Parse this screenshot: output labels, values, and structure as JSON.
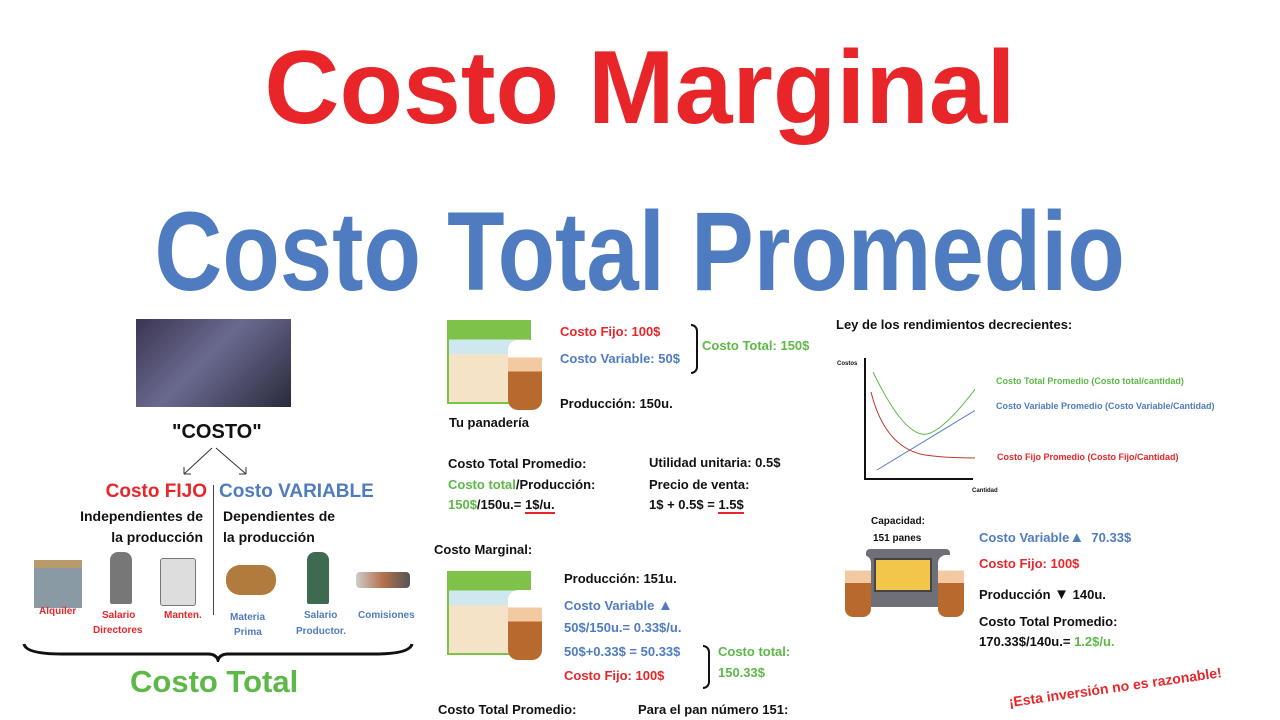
{
  "titles": {
    "line1": "Costo Marginal",
    "line2": "Costo Total Promedio"
  },
  "colors": {
    "red": "#e8262a",
    "blue": "#4f7cc0",
    "green": "#5cb947"
  },
  "left": {
    "costo": "\"COSTO\"",
    "fijo_title": "Costo FIJO",
    "fijo_desc1": "Independientes de",
    "fijo_desc2": "la producción",
    "variable_title": "Costo VARIABLE",
    "variable_desc1": "Dependientes de",
    "variable_desc2": "la producción",
    "fijo_items": [
      {
        "label": "Alquiler",
        "icon": "store-icon"
      },
      {
        "label1": "Salario",
        "label2": "Directores",
        "icon": "businessman-icon"
      },
      {
        "label": "Manten.",
        "icon": "washing-machine-icon"
      }
    ],
    "variable_items": [
      {
        "label1": "Materia",
        "label2": "Prima",
        "icon": "logs-icon"
      },
      {
        "label1": "Salario",
        "label2": "Productor.",
        "icon": "worker-icon"
      },
      {
        "label": "Comisiones",
        "icon": "handshake-icon"
      }
    ],
    "total": "Costo Total"
  },
  "middle": {
    "fijo": "Costo Fijo: 100$",
    "variable": "Costo Variable: 50$",
    "total": "Costo Total: 150$",
    "produccion": "Producción: 150u.",
    "shop_label": "Tu panadería",
    "ctp_title": "Costo Total Promedio:",
    "ctp_f1a": "Costo total",
    "ctp_f1b": "/Producción:",
    "ctp_f2a": "150$",
    "ctp_f2b": "/150u.= ",
    "ctp_f2c": "1$/u.",
    "utilidad": "Utilidad unitaria: 0.5$",
    "precio": "Precio de venta:",
    "precio_f1": "1$ + 0.5$ = ",
    "precio_f2": "1.5$",
    "marginal_title": "Costo Marginal:",
    "prod2": "Producción: 151u.",
    "var2": "Costo Variable",
    "var2_f1": "50$/150u.= 0.33$/u.",
    "var2_f2": "50$+0.33$ = 50.33$",
    "fijo2": "Costo Fijo: 100$",
    "total2a": "Costo total:",
    "total2b": "150.33$",
    "ctp2": "Costo Total Promedio:",
    "pan151": "Para el pan número 151:"
  },
  "right": {
    "ley": "Ley de los rendimientos decrecientes:",
    "chart": {
      "ylabel": "Costos",
      "xlabel": "Cantidad",
      "curves": [
        {
          "name": "Costo Total Promedio (Costo total/cantidad)",
          "color": "#5cb947"
        },
        {
          "name": "Costo Variable Promedio (Costo Variable/Cantidad)",
          "color": "#4f7cc0"
        },
        {
          "name": "Costo Fijo Promedio (Costo Fijo/Cantidad)",
          "color": "#e8262a"
        }
      ]
    },
    "capacidad1": "Capacidad:",
    "capacidad2": "151 panes",
    "var": "Costo Variable",
    "var_val": "70.33$",
    "fijo": "Costo Fijo: 100$",
    "prod": "Producción",
    "prod_val": "140u.",
    "ctp": "Costo Total Promedio:",
    "ctp_f1": "170.33$/140u.= ",
    "ctp_f2": "1.2$/u.",
    "warning": "¡Esta inversión no es razonable!"
  }
}
